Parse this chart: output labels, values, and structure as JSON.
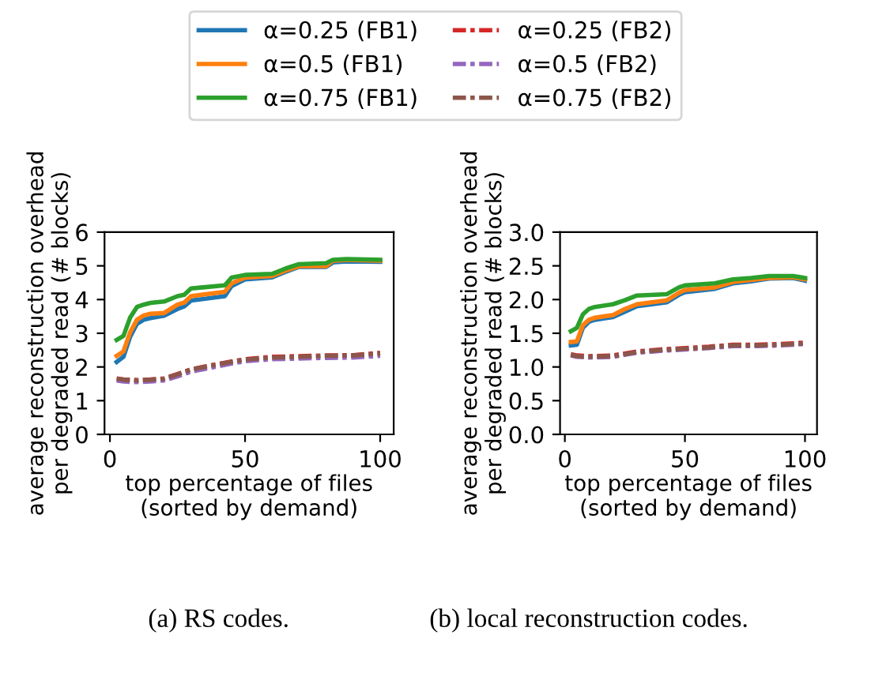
{
  "chart_data": [
    {
      "type": "line",
      "xlabel": "top percentage of files\n(sorted by demand)",
      "ylabel": "average reconstruction overhead\nper degraded read (# blocks)",
      "annotations": [
        "(a) RS codes."
      ],
      "xlim": [
        -2,
        105
      ],
      "xticks": [
        0,
        50,
        100
      ],
      "ylim": [
        0,
        6
      ],
      "yticks": [
        0,
        1,
        2,
        3,
        4,
        5,
        6
      ],
      "grid": false,
      "legend": "top",
      "series": [
        {
          "name": "α=0.25 (FB1)",
          "color": "#1f77b4",
          "line_style": "solid",
          "x": [
            2.5,
            5,
            7.5,
            10,
            12.5,
            15,
            20,
            25,
            27.5,
            30,
            42.5,
            45,
            50,
            60,
            65,
            70,
            80,
            82.5,
            87.5,
            100
          ],
          "values": [
            2.15,
            2.3,
            2.9,
            3.28,
            3.4,
            3.45,
            3.52,
            3.72,
            3.8,
            3.97,
            4.1,
            4.4,
            4.6,
            4.66,
            4.82,
            4.97,
            4.97,
            5.1,
            5.13,
            5.12
          ]
        },
        {
          "name": "α=0.5 (FB1)",
          "color": "#ff7f0e",
          "line_style": "solid",
          "x": [
            2.5,
            5,
            7.5,
            10,
            12.5,
            15,
            20,
            25,
            27.5,
            30,
            42.5,
            45,
            50,
            60,
            65,
            70,
            80,
            82.5,
            87.5,
            100
          ],
          "values": [
            2.33,
            2.46,
            3.03,
            3.4,
            3.53,
            3.58,
            3.6,
            3.85,
            3.91,
            4.1,
            4.23,
            4.48,
            4.65,
            4.7,
            4.86,
            4.99,
            4.99,
            5.15,
            5.18,
            5.15
          ]
        },
        {
          "name": "α=0.75 (FB1)",
          "color": "#2ca02c",
          "line_style": "solid",
          "x": [
            2.5,
            5,
            7.5,
            10,
            12.5,
            15,
            20,
            25,
            27.5,
            30,
            42.5,
            45,
            50,
            60,
            65,
            70,
            80,
            82.5,
            87.5,
            100
          ],
          "values": [
            2.8,
            2.92,
            3.47,
            3.78,
            3.85,
            3.9,
            3.94,
            4.1,
            4.14,
            4.33,
            4.42,
            4.65,
            4.73,
            4.76,
            4.92,
            5.05,
            5.08,
            5.18,
            5.2,
            5.18
          ]
        },
        {
          "name": "α=0.25 (FB2)",
          "color": "#d62728",
          "line_style": "dashdot",
          "x": [
            2.5,
            5,
            10,
            15,
            20,
            25,
            30,
            35,
            40,
            45,
            50,
            60,
            70,
            80,
            90,
            100
          ],
          "values": [
            1.66,
            1.63,
            1.61,
            1.63,
            1.66,
            1.79,
            1.93,
            2.01,
            2.09,
            2.16,
            2.23,
            2.3,
            2.32,
            2.34,
            2.35,
            2.42
          ]
        },
        {
          "name": "α=0.5 (FB2)",
          "color": "#9467bd",
          "line_style": "dashdot",
          "x": [
            2.5,
            5,
            10,
            15,
            20,
            25,
            30,
            35,
            40,
            45,
            50,
            60,
            70,
            80,
            90,
            100
          ],
          "values": [
            1.6,
            1.57,
            1.55,
            1.57,
            1.6,
            1.72,
            1.86,
            1.94,
            2.02,
            2.1,
            2.17,
            2.23,
            2.25,
            2.27,
            2.28,
            2.33
          ]
        },
        {
          "name": "α=0.75 (FB2)",
          "color": "#8c564b",
          "line_style": "dashdot",
          "x": [
            2.5,
            5,
            10,
            15,
            20,
            25,
            30,
            35,
            40,
            45,
            50,
            60,
            70,
            80,
            90,
            100
          ],
          "values": [
            1.65,
            1.62,
            1.6,
            1.62,
            1.65,
            1.78,
            1.92,
            2.0,
            2.08,
            2.15,
            2.22,
            2.28,
            2.3,
            2.33,
            2.34,
            2.4
          ]
        }
      ]
    },
    {
      "type": "line",
      "xlabel": "top percentage of files\n(sorted by demand)",
      "ylabel": "average reconstruction overhead\nper degraded read (# blocks)",
      "annotations": [
        "(b) local reconstruction codes."
      ],
      "xlim": [
        -2,
        105
      ],
      "xticks": [
        0,
        50,
        100
      ],
      "ylim": [
        0,
        3
      ],
      "yticks": [
        {
          "value": 0,
          "label": "0.0"
        },
        0.5,
        {
          "value": 1,
          "label": "1.0"
        },
        1.5,
        {
          "value": 2,
          "label": "2.0"
        },
        2.5,
        {
          "value": 3,
          "label": "3.0"
        }
      ],
      "grid": false,
      "series": [
        {
          "color": "#1f77b4",
          "line_style": "solid",
          "x": [
            2.5,
            5,
            7.5,
            10,
            12.5,
            20,
            25,
            30,
            42.5,
            47.5,
            50,
            62.5,
            70,
            77.5,
            85,
            95,
            100
          ],
          "values": [
            1.32,
            1.33,
            1.58,
            1.67,
            1.7,
            1.74,
            1.82,
            1.9,
            1.96,
            2.07,
            2.11,
            2.16,
            2.24,
            2.27,
            2.31,
            2.32,
            2.28
          ]
        },
        {
          "color": "#ff7f0e",
          "line_style": "solid",
          "x": [
            2.5,
            5,
            7.5,
            10,
            12.5,
            20,
            25,
            30,
            42.5,
            47.5,
            50,
            62.5,
            70,
            77.5,
            85,
            95,
            100
          ],
          "values": [
            1.37,
            1.38,
            1.62,
            1.7,
            1.73,
            1.77,
            1.86,
            1.93,
            1.99,
            2.1,
            2.14,
            2.18,
            2.26,
            2.29,
            2.32,
            2.33,
            2.3
          ]
        },
        {
          "color": "#2ca02c",
          "line_style": "solid",
          "x": [
            2.5,
            5,
            7.5,
            10,
            12.5,
            20,
            25,
            30,
            42.5,
            47.5,
            50,
            62.5,
            70,
            77.5,
            85,
            95,
            100
          ],
          "values": [
            1.53,
            1.58,
            1.78,
            1.86,
            1.89,
            1.93,
            1.99,
            2.06,
            2.08,
            2.18,
            2.21,
            2.24,
            2.3,
            2.32,
            2.35,
            2.35,
            2.32
          ]
        },
        {
          "color": "#d62728",
          "line_style": "dashdot",
          "x": [
            2.5,
            5,
            10,
            20,
            30,
            40,
            50,
            60,
            70,
            80,
            90,
            100
          ],
          "values": [
            1.19,
            1.17,
            1.16,
            1.17,
            1.23,
            1.26,
            1.28,
            1.3,
            1.33,
            1.33,
            1.34,
            1.36
          ]
        },
        {
          "color": "#9467bd",
          "line_style": "dashdot",
          "x": [
            2.5,
            5,
            10,
            20,
            30,
            40,
            50,
            60,
            70,
            80,
            90,
            100
          ],
          "values": [
            1.17,
            1.15,
            1.14,
            1.15,
            1.21,
            1.24,
            1.26,
            1.28,
            1.31,
            1.31,
            1.32,
            1.34
          ]
        },
        {
          "color": "#8c564b",
          "line_style": "dashdot",
          "x": [
            2.5,
            5,
            10,
            20,
            30,
            40,
            50,
            60,
            70,
            80,
            90,
            100
          ],
          "values": [
            1.18,
            1.16,
            1.15,
            1.16,
            1.22,
            1.25,
            1.27,
            1.29,
            1.32,
            1.32,
            1.33,
            1.35
          ]
        }
      ]
    }
  ]
}
